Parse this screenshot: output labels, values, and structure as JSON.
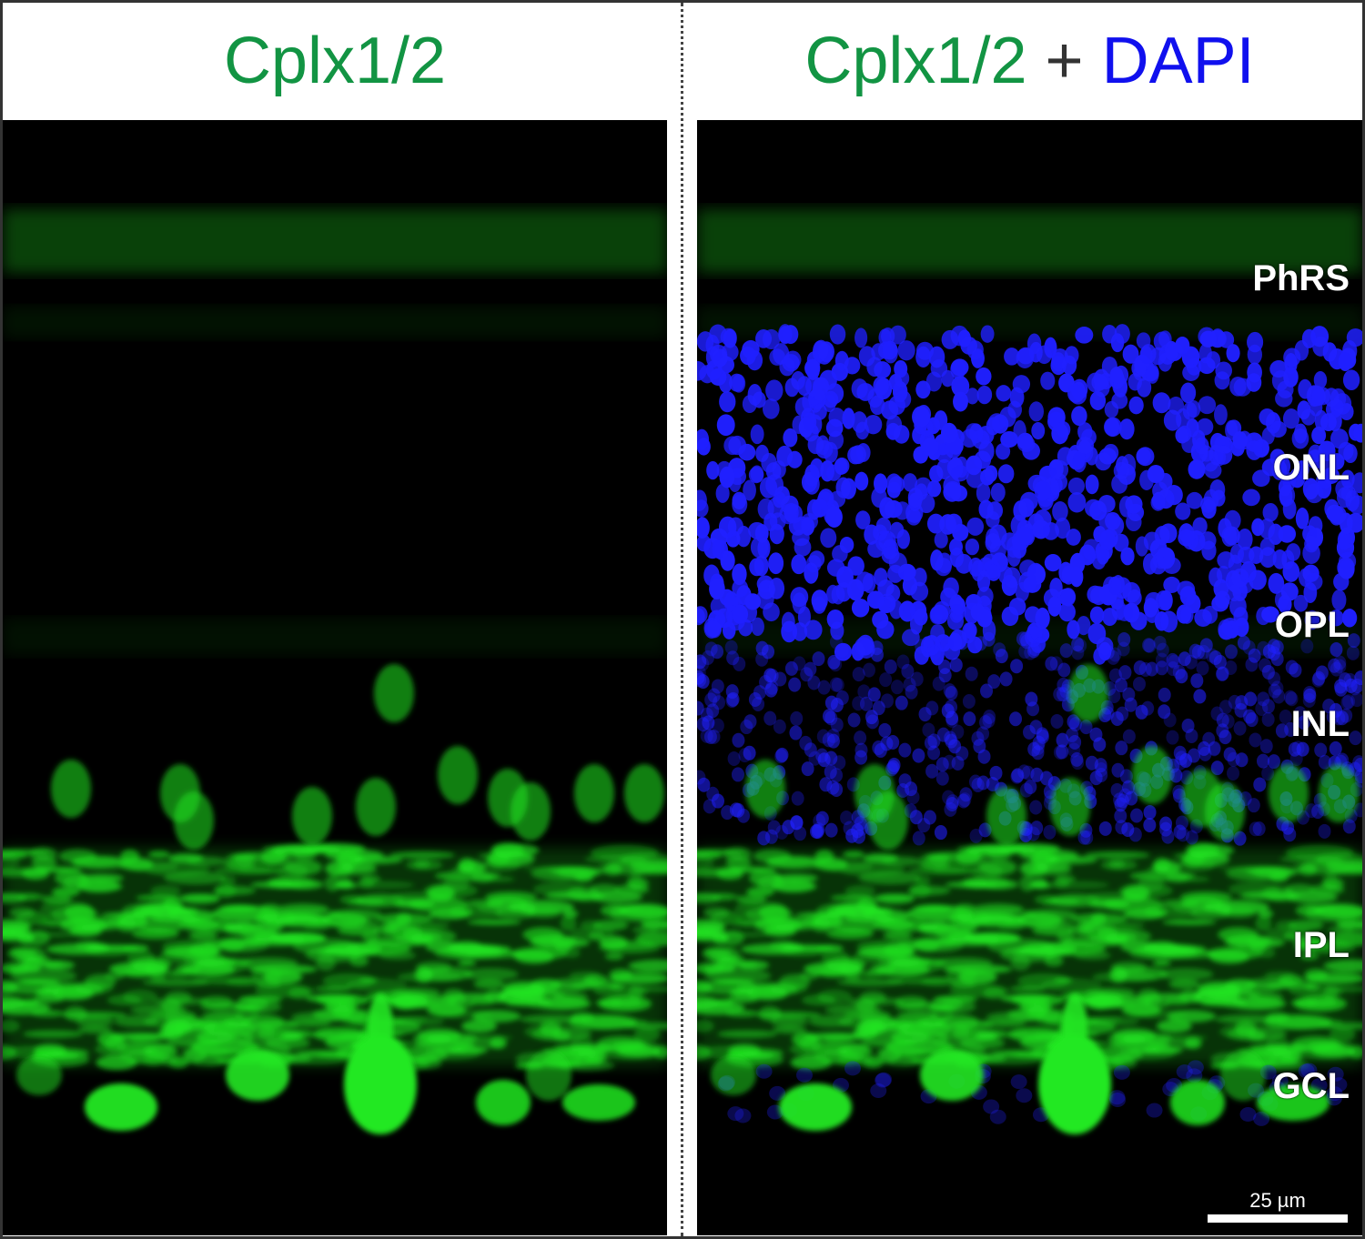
{
  "left_panel": {
    "title": "Cplx1/2"
  },
  "right_panel": {
    "title_parts": [
      "Cplx1/2",
      "+",
      "DAPI"
    ],
    "layer_labels": [
      "PhRS",
      "ONL",
      "OPL",
      "INL",
      "IPL",
      "GCL"
    ],
    "scale_bar": "25 µm"
  },
  "colors": {
    "cplx": "#129443",
    "dapi": "#1010ee",
    "stain_green": "#22e822",
    "stain_blue": "#2020ff"
  }
}
